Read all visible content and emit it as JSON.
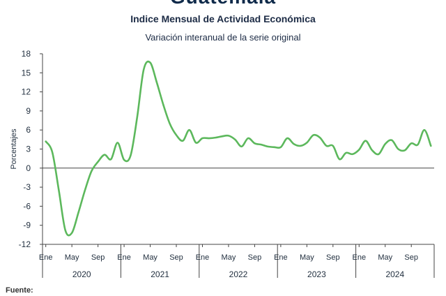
{
  "header": {
    "country": "Guatemala",
    "title": "Indice Mensual de  Actividad Económica",
    "subtitle": "Variación interanual de la serie original"
  },
  "footer": {
    "source_label": "Fuente:"
  },
  "chart_data": {
    "type": "line",
    "title": "Indice Mensual de  Actividad Económica",
    "subtitle": "Variación interanual de la serie original",
    "ylabel": "Porcentajes",
    "ylim": [
      -12,
      18
    ],
    "yticks": [
      -12,
      -9,
      -6,
      -3,
      0,
      3,
      6,
      9,
      12,
      15,
      18
    ],
    "ytick_labels": [
      "-12",
      "-9",
      "-6",
      "-3",
      "0",
      "3",
      "6",
      "9",
      "12",
      "15",
      "18"
    ],
    "grid": false,
    "line_color": "#5cb85c",
    "years": [
      "2020",
      "2021",
      "2022",
      "2023",
      "2024"
    ],
    "month_tick_labels": [
      "Ene",
      "May",
      "Sep"
    ],
    "series": [
      {
        "values": [
          4.2,
          2.5,
          -3.5,
          -9.8,
          -10.2,
          -7.0,
          -3.5,
          -0.5,
          1.0,
          2.1,
          1.4,
          4.0,
          1.3,
          2.0,
          8.0,
          15.5,
          16.6,
          13.5,
          10.0,
          7.0,
          5.2,
          4.3,
          6.0,
          4.0,
          4.7,
          4.7,
          4.8,
          5.0,
          5.1,
          4.5,
          3.4,
          4.7,
          3.9,
          3.7,
          3.4,
          3.3,
          3.3,
          4.7,
          3.8,
          3.5,
          4.0,
          5.2,
          4.8,
          3.5,
          3.5,
          1.4,
          2.4,
          2.2,
          2.9,
          4.3,
          2.8,
          2.2,
          3.8,
          4.4,
          3.0,
          2.8,
          3.9,
          3.7,
          6.0,
          3.5
        ]
      }
    ]
  }
}
